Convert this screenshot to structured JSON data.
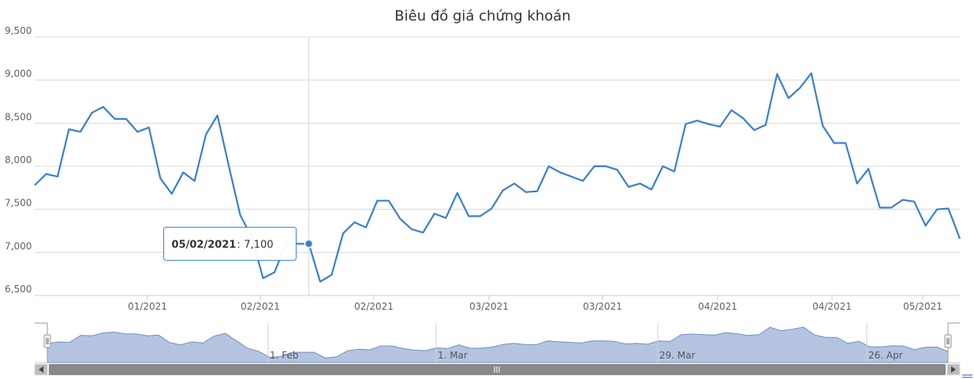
{
  "chart_data": {
    "type": "line",
    "title": "Biêu đồ giá chứng khoán",
    "xlabel": "",
    "ylabel": "",
    "ylim": [
      6500,
      9500
    ],
    "yticks": [
      "6,500",
      "7,000",
      "7,500",
      "8,000",
      "8,500",
      "9,000",
      "9,500"
    ],
    "ytick_values": [
      6500,
      7000,
      7500,
      8000,
      8500,
      9000,
      9500
    ],
    "xticks": [
      "01/2021",
      "02/2021",
      "02/2021",
      "03/2021",
      "03/2021",
      "04/2021",
      "04/2021",
      "05/2021"
    ],
    "series": [
      {
        "color": "#3a7fd0",
        "values": [
          7780,
          7910,
          7880,
          8430,
          8400,
          8620,
          8690,
          8550,
          8550,
          8400,
          8450,
          7860,
          7680,
          7930,
          7830,
          8370,
          8590,
          8000,
          7430,
          7180,
          6700,
          6770,
          7100,
          7100,
          7100,
          6660,
          6740,
          7220,
          7350,
          7290,
          7600,
          7600,
          7390,
          7270,
          7230,
          7450,
          7400,
          7690,
          7420,
          7420,
          7510,
          7720,
          7800,
          7700,
          7710,
          8000,
          7930,
          7880,
          7830,
          8000,
          8000,
          7960,
          7760,
          7800,
          7730,
          8000,
          7940,
          8490,
          8530,
          8490,
          8460,
          8650,
          8560,
          8420,
          8480,
          9070,
          8790,
          8910,
          9080,
          8470,
          8270,
          8270,
          7800,
          7970,
          7520,
          7520,
          7610,
          7590,
          7310,
          7500,
          7510,
          7160
        ]
      }
    ],
    "tooltip": {
      "date": "05/02/2021",
      "value": "7,100",
      "point_index": 24
    },
    "navigator": {
      "labels": [
        "1. Feb",
        "1. Mar",
        "29. Mar",
        "26. Apr"
      ],
      "fill_color": "#b4c4e0",
      "line_color": "#6f8fc4"
    },
    "grid": true,
    "legend": "none"
  }
}
